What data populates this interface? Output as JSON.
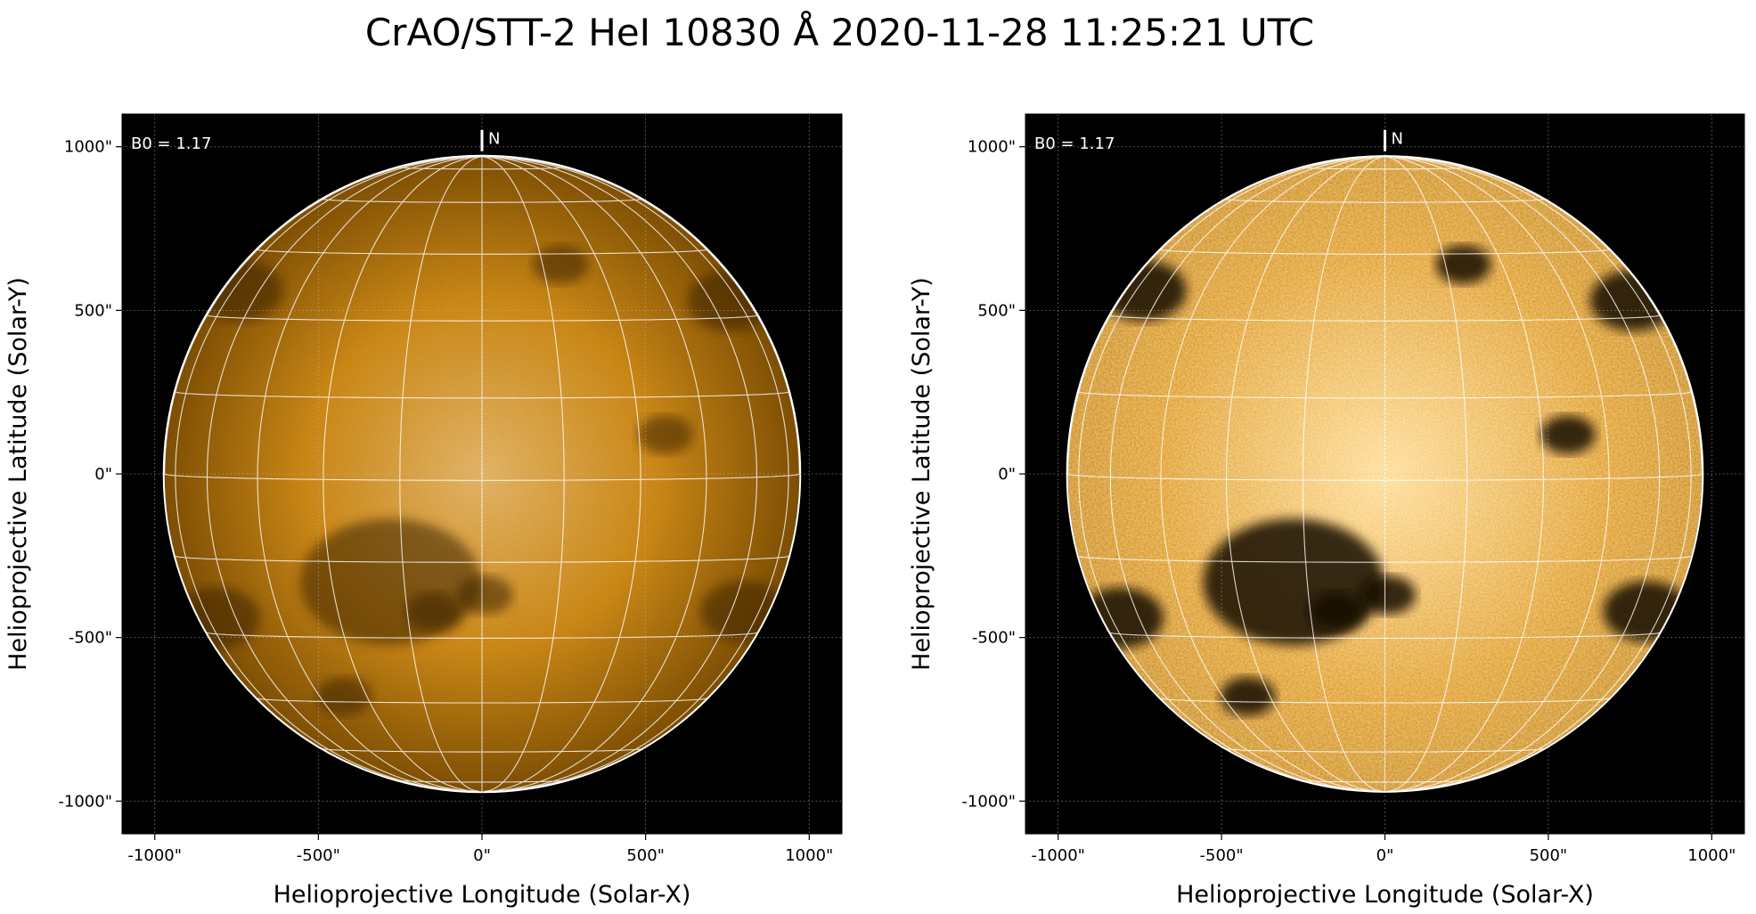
{
  "title": "CrAO/STT-2 HeI 10830 Å 2020-11-28 11:25:21 UTC",
  "colors": {
    "disk_center": "#f7c470",
    "disk_mid": "#dd9418",
    "disk_edge": "#8a5604",
    "disk_center_enhanced": "#ffd98c",
    "disk_edge_enhanced": "#c98510",
    "background": "#000000",
    "grid": "#ffffff"
  },
  "panels": [
    {
      "id": "left",
      "variant": "normal",
      "b0_label": "B0 = 1.17",
      "north_label": "N",
      "xlabel": "Helioprojective Longitude (Solar-X)",
      "ylabel": "Helioprojective Latitude (Solar-Y)",
      "xticks": [
        "-1000\"",
        "-500\"",
        "0\"",
        "500\"",
        "1000\""
      ],
      "yticks": [
        "1000\"",
        "500\"",
        "0\"",
        "-500\"",
        "-1000\""
      ]
    },
    {
      "id": "right",
      "variant": "enhanced",
      "b0_label": "B0 = 1.17",
      "north_label": "N",
      "xlabel": "Helioprojective Longitude (Solar-X)",
      "ylabel": "Helioprojective Latitude (Solar-Y)",
      "xticks": [
        "-1000\"",
        "-500\"",
        "0\"",
        "500\"",
        "1000\""
      ],
      "yticks": [
        "1000\"",
        "500\"",
        "0\"",
        "-500\"",
        "-1000\""
      ]
    }
  ],
  "chart_data": {
    "type": "image",
    "xlim": [
      -1100,
      1100
    ],
    "ylim": [
      -1100,
      1100
    ],
    "x_tick_values": [
      -1000,
      -500,
      0,
      500,
      1000
    ],
    "y_tick_values": [
      1000,
      500,
      0,
      -500,
      -1000
    ],
    "solar_radius_arcsec": 970,
    "b0_deg": 1.17,
    "grid_lines": "heliographic, 15° spacing",
    "features": [
      {
        "name": "filament-complex",
        "x": -280,
        "y": -330
      },
      {
        "name": "filament-southwest",
        "x": -150,
        "y": -420
      },
      {
        "name": "filament-central",
        "x": 10,
        "y": -370
      },
      {
        "name": "limb-dark-northeast",
        "x": -740,
        "y": 560
      },
      {
        "name": "limb-dark-southeast",
        "x": -810,
        "y": -440
      },
      {
        "name": "limb-dark-southwest",
        "x": 800,
        "y": -420
      },
      {
        "name": "limb-dark-northwest",
        "x": 760,
        "y": 530
      },
      {
        "name": "dark-spot-south",
        "x": -420,
        "y": -680
      },
      {
        "name": "dark-spot-north",
        "x": 240,
        "y": 640
      },
      {
        "name": "dark-spot-west",
        "x": 560,
        "y": 120
      }
    ]
  }
}
